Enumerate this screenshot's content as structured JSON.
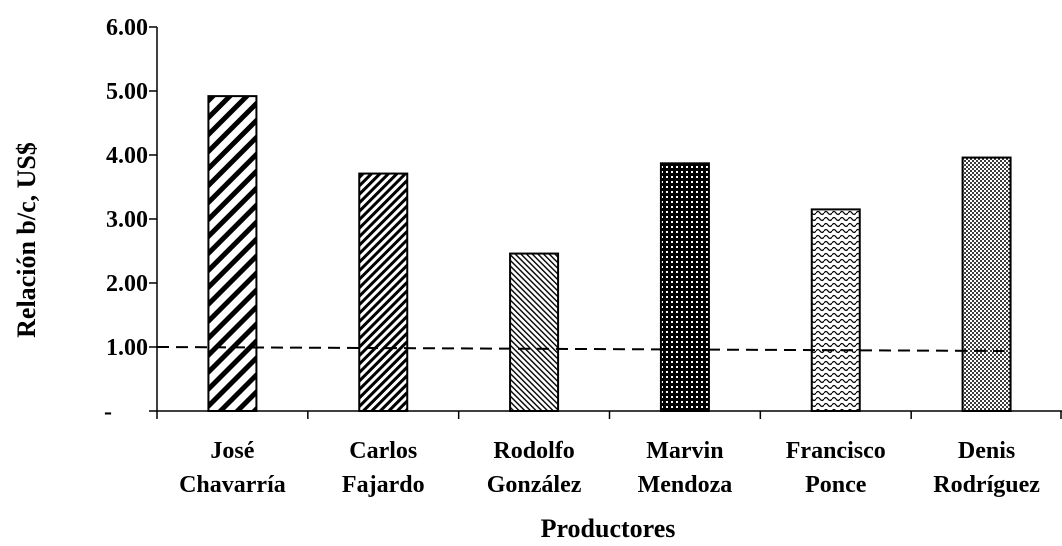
{
  "chart_data": {
    "type": "bar",
    "title": "",
    "xlabel": "Productores",
    "ylabel": "Relación b/c, US$",
    "ylim": [
      0,
      6
    ],
    "ytick_labels": [
      "-",
      "1.00",
      "2.00",
      "3.00",
      "4.00",
      "5.00",
      "6.00"
    ],
    "categories": [
      [
        "José",
        "Chavarría"
      ],
      [
        "Carlos",
        "Fajardo"
      ],
      [
        "Rodolfo",
        "González"
      ],
      [
        "Marvin",
        "Mendoza"
      ],
      [
        "Francisco",
        "Ponce"
      ],
      [
        "Denis",
        "Rodríguez"
      ]
    ],
    "values": [
      4.92,
      3.71,
      2.46,
      3.87,
      3.15,
      3.96
    ],
    "bar_patterns": [
      "wide-diagonal",
      "dense-diagonal",
      "back-diagonal",
      "crosshatch",
      "wave",
      "dots"
    ],
    "reference_line": {
      "value": 1.0,
      "style": "dashed"
    },
    "grid": false,
    "legend": "none"
  }
}
